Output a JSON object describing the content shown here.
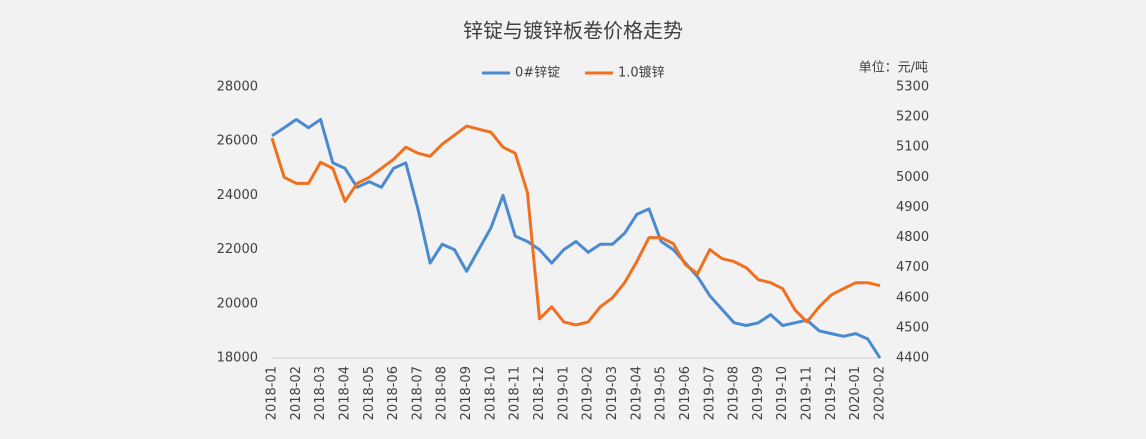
{
  "chart_data": {
    "type": "line",
    "title": "锌锭与镀锌板卷价格走势",
    "unit": "单位：元/吨",
    "categories": [
      "2018-01",
      null,
      "2018-02",
      null,
      "2018-03",
      null,
      "2018-04",
      null,
      "2018-05",
      null,
      "2018-06",
      null,
      "2018-07",
      null,
      "2018-08",
      null,
      "2018-09",
      null,
      "2018-10",
      null,
      "2018-11",
      null,
      "2018-12",
      null,
      "2019-01",
      null,
      "2019-02",
      null,
      "2019-03",
      null,
      "2019-04",
      null,
      "2019-05",
      null,
      "2019-06",
      null,
      "2019-07",
      null,
      "2019-08",
      null,
      "2019-09",
      null,
      "2019-10",
      null,
      "2019-11",
      null,
      "2019-12",
      null,
      "2020-01",
      null,
      "2020-02"
    ],
    "series": [
      {
        "name": "0#锌锭",
        "color": "#4a8ad0",
        "axis": "y",
        "values": [
          26200,
          26500,
          26800,
          26500,
          26800,
          25200,
          25000,
          24300,
          24500,
          24300,
          25000,
          25200,
          23500,
          21500,
          22200,
          22000,
          21200,
          22000,
          22800,
          24000,
          22500,
          22300,
          22000,
          21500,
          22000,
          22300,
          21900,
          22200,
          22200,
          22600,
          23300,
          23500,
          22300,
          22000,
          21500,
          21000,
          20300,
          19800,
          19300,
          19200,
          19300,
          19600,
          19200,
          19300,
          19400,
          19000,
          18900,
          18800,
          18900,
          18700,
          18000
        ]
      },
      {
        "name": "1.0镀锌",
        "color": "#f07020",
        "axis": "y2",
        "values": [
          5130,
          5000,
          4980,
          4980,
          5050,
          5030,
          4920,
          4980,
          5000,
          5030,
          5060,
          5100,
          5080,
          5070,
          5110,
          5140,
          5170,
          5160,
          5150,
          5100,
          5080,
          4950,
          4530,
          4570,
          4520,
          4510,
          4520,
          4570,
          4600,
          4650,
          4720,
          4800,
          4800,
          4780,
          4710,
          4680,
          4760,
          4730,
          4720,
          4700,
          4660,
          4650,
          4630,
          4560,
          4520,
          4570,
          4610,
          4630,
          4650,
          4650,
          4640
        ]
      }
    ],
    "ylim": [
      18000,
      28000
    ],
    "yticks": [
      18000,
      20000,
      22000,
      24000,
      26000,
      28000
    ],
    "y2lim": [
      4400,
      5300
    ],
    "y2ticks": [
      4400,
      4500,
      4600,
      4700,
      4800,
      4900,
      5000,
      5100,
      5200,
      5300
    ],
    "legend": "top",
    "grid": false
  }
}
